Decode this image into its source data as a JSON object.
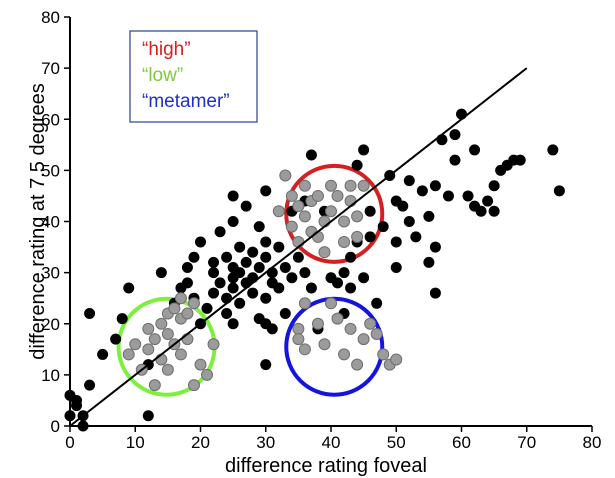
{
  "chart_data": {
    "type": "scatter",
    "title": "",
    "xlabel": "difference rating foveal",
    "ylabel": "difference rating at 7.5 degrees",
    "xlim": [
      0,
      80
    ],
    "ylim": [
      0,
      80
    ],
    "xticks": [
      "0",
      "10",
      "20",
      "30",
      "40",
      "50",
      "60",
      "70",
      "80"
    ],
    "yticks": [
      "0",
      "10",
      "20",
      "30",
      "40",
      "50",
      "60",
      "70",
      "80"
    ],
    "grid": false,
    "legend_position": "top-left",
    "legend": [
      {
        "label": "“high”",
        "color": "#d42020"
      },
      {
        "label": "“low”",
        "color": "#7fc940"
      },
      {
        "label": "“metamer”",
        "color": "#1f2fc8"
      }
    ],
    "reference_line": {
      "x": [
        0,
        70
      ],
      "y": [
        0,
        70
      ]
    },
    "category_circles": [
      {
        "name": "high",
        "center": [
          40.5,
          41.5
        ],
        "color": "#d42020"
      },
      {
        "name": "low",
        "center": [
          14.8,
          15.5
        ],
        "color": "#7cf03c"
      },
      {
        "name": "metamer",
        "center": [
          40.5,
          15.5
        ],
        "color": "#1414e0"
      }
    ],
    "series": [
      {
        "name": "black",
        "color": "#000000",
        "points": [
          [
            0,
            2
          ],
          [
            0,
            6
          ],
          [
            1,
            4
          ],
          [
            1,
            5
          ],
          [
            2,
            2
          ],
          [
            2,
            0
          ],
          [
            3,
            22
          ],
          [
            3,
            8
          ],
          [
            5,
            14
          ],
          [
            7,
            17
          ],
          [
            8,
            21
          ],
          [
            9,
            27
          ],
          [
            12,
            2
          ],
          [
            12,
            12
          ],
          [
            14,
            30
          ],
          [
            15,
            22
          ],
          [
            16,
            24
          ],
          [
            17,
            27
          ],
          [
            18,
            28
          ],
          [
            18,
            31
          ],
          [
            19,
            33
          ],
          [
            19,
            25
          ],
          [
            20,
            20
          ],
          [
            20,
            36
          ],
          [
            21,
            23
          ],
          [
            22,
            26
          ],
          [
            22,
            30
          ],
          [
            22,
            32
          ],
          [
            23,
            28
          ],
          [
            23,
            38
          ],
          [
            24,
            22
          ],
          [
            24,
            25
          ],
          [
            24,
            33
          ],
          [
            25,
            20
          ],
          [
            25,
            27
          ],
          [
            25,
            29
          ],
          [
            25,
            31
          ],
          [
            25,
            40
          ],
          [
            25,
            45
          ],
          [
            26,
            24
          ],
          [
            26,
            30
          ],
          [
            26,
            35
          ],
          [
            27,
            28
          ],
          [
            27,
            32
          ],
          [
            27,
            43
          ],
          [
            28,
            26
          ],
          [
            28,
            29
          ],
          [
            28,
            34
          ],
          [
            29,
            21
          ],
          [
            29,
            31
          ],
          [
            29,
            39
          ],
          [
            30,
            25
          ],
          [
            30,
            33
          ],
          [
            30,
            36
          ],
          [
            30,
            46
          ],
          [
            30,
            20
          ],
          [
            30,
            12
          ],
          [
            31,
            28
          ],
          [
            31,
            30
          ],
          [
            31,
            19
          ],
          [
            32,
            27
          ],
          [
            32,
            35
          ],
          [
            33,
            31
          ],
          [
            33,
            22
          ],
          [
            34,
            29
          ],
          [
            34,
            42
          ],
          [
            35,
            17
          ],
          [
            35,
            33
          ],
          [
            36,
            30
          ],
          [
            36,
            44
          ],
          [
            37,
            27
          ],
          [
            37,
            53
          ],
          [
            38,
            19
          ],
          [
            39,
            42
          ],
          [
            40,
            29
          ],
          [
            41,
            28
          ],
          [
            42,
            30
          ],
          [
            42,
            22
          ],
          [
            43,
            33
          ],
          [
            43,
            27
          ],
          [
            44,
            36
          ],
          [
            44,
            51
          ],
          [
            45,
            29
          ],
          [
            45,
            54
          ],
          [
            46,
            42
          ],
          [
            46,
            37
          ],
          [
            47,
            24
          ],
          [
            48,
            39
          ],
          [
            49,
            49
          ],
          [
            50,
            44
          ],
          [
            50,
            36
          ],
          [
            50,
            31
          ],
          [
            51,
            43
          ],
          [
            52,
            48
          ],
          [
            52,
            40
          ],
          [
            53,
            37
          ],
          [
            54,
            46
          ],
          [
            55,
            41
          ],
          [
            55,
            32
          ],
          [
            56,
            47
          ],
          [
            56,
            35
          ],
          [
            56,
            26
          ],
          [
            57,
            56
          ],
          [
            58,
            45
          ],
          [
            59,
            57
          ],
          [
            59,
            52
          ],
          [
            60,
            61
          ],
          [
            61,
            45
          ],
          [
            62,
            54
          ],
          [
            62,
            43
          ],
          [
            63,
            42
          ],
          [
            64,
            44
          ],
          [
            65,
            42
          ],
          [
            65,
            47
          ],
          [
            66,
            50
          ],
          [
            67,
            51
          ],
          [
            68,
            52
          ],
          [
            69,
            52
          ],
          [
            74,
            54
          ],
          [
            75,
            46
          ]
        ]
      },
      {
        "name": "gray",
        "color": "#9b9b9b",
        "points": [
          [
            9,
            14
          ],
          [
            10,
            16
          ],
          [
            11,
            11
          ],
          [
            12,
            19
          ],
          [
            12,
            15
          ],
          [
            13,
            17
          ],
          [
            13,
            8
          ],
          [
            14,
            20
          ],
          [
            14,
            13
          ],
          [
            15,
            22
          ],
          [
            15,
            18
          ],
          [
            15,
            11
          ],
          [
            16,
            23
          ],
          [
            16,
            16
          ],
          [
            17,
            21
          ],
          [
            17,
            25
          ],
          [
            17,
            14
          ],
          [
            18,
            22
          ],
          [
            18,
            17
          ],
          [
            19,
            24
          ],
          [
            19,
            8
          ],
          [
            20,
            12
          ],
          [
            21,
            10
          ],
          [
            22,
            16
          ],
          [
            32,
            42
          ],
          [
            33,
            49
          ],
          [
            34,
            45
          ],
          [
            34,
            39
          ],
          [
            35,
            43
          ],
          [
            35,
            36
          ],
          [
            36,
            47
          ],
          [
            36,
            41
          ],
          [
            37,
            44
          ],
          [
            37,
            38
          ],
          [
            38,
            45
          ],
          [
            38,
            37
          ],
          [
            39,
            40
          ],
          [
            39,
            34
          ],
          [
            40,
            47
          ],
          [
            40,
            42
          ],
          [
            41,
            45
          ],
          [
            42,
            40
          ],
          [
            42,
            36
          ],
          [
            43,
            44
          ],
          [
            43,
            47
          ],
          [
            44,
            41
          ],
          [
            44,
            37
          ],
          [
            45,
            47
          ],
          [
            35,
            19
          ],
          [
            35,
            17
          ],
          [
            36,
            24
          ],
          [
            36,
            15
          ],
          [
            38,
            20
          ],
          [
            39,
            16
          ],
          [
            40,
            24
          ],
          [
            41,
            21
          ],
          [
            42,
            14
          ],
          [
            43,
            19
          ],
          [
            44,
            12
          ],
          [
            45,
            17
          ],
          [
            46,
            20
          ],
          [
            47,
            18
          ],
          [
            48,
            14
          ],
          [
            49,
            12
          ],
          [
            50,
            13
          ]
        ]
      }
    ]
  }
}
